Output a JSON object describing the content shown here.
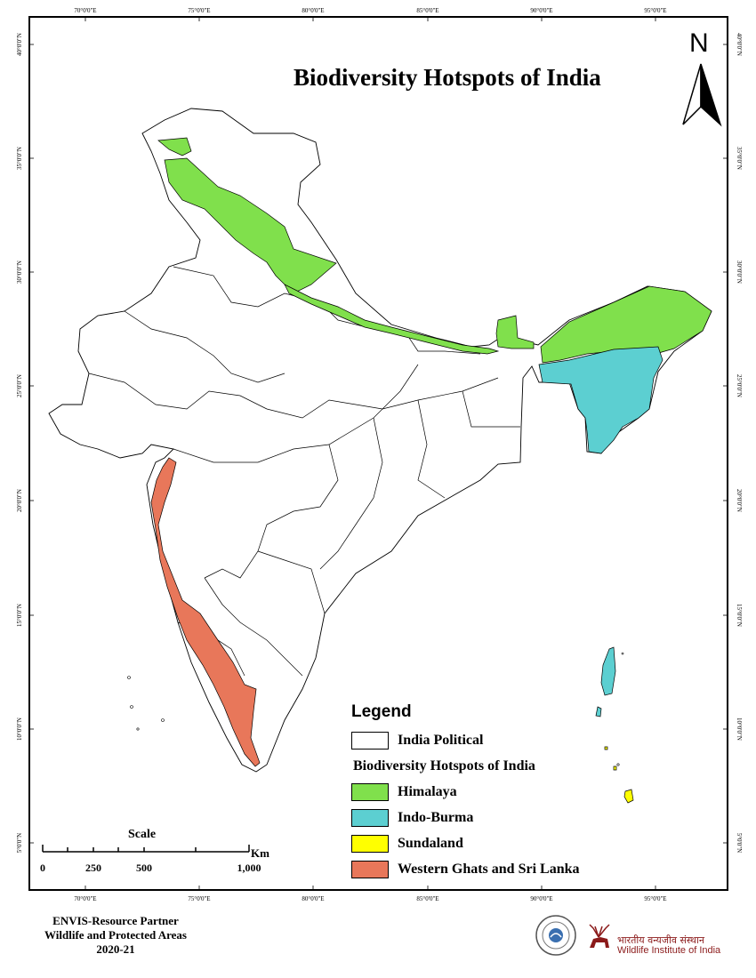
{
  "title": "Biodiversity Hotspots of India",
  "north_arrow_label": "N",
  "longitude_labels": [
    "70°0'0\"E",
    "75°0'0\"E",
    "80°0'0\"E",
    "85°0'0\"E",
    "90°0'0\"E",
    "95°0'0\"E"
  ],
  "latitude_labels": [
    "40°0'0\"N",
    "35°0'0\"N",
    "30°0'0\"N",
    "25°0'0\"N",
    "20°0'0\"N",
    "15°0'0\"N",
    "10°0'0\"N",
    "5°0'0\"N"
  ],
  "colors": {
    "himalaya": "#80e04c",
    "indo_burma": "#5ccfd1",
    "sundaland": "#ffff00",
    "western_ghats": "#e8775a",
    "india_political": "#ffffff",
    "boundary": "#000000",
    "institute": "#8b1a1a"
  },
  "legend": {
    "title": "Legend",
    "political_label": "India Political",
    "hotspots_heading": "Biodiversity Hotspots of India",
    "items": [
      {
        "label": "Himalaya",
        "color": "#80e04c"
      },
      {
        "label": "Indo-Burma",
        "color": "#5ccfd1"
      },
      {
        "label": "Sundaland",
        "color": "#ffff00"
      },
      {
        "label": "Western Ghats and Sri Lanka",
        "color": "#e8775a"
      }
    ]
  },
  "scale_bar": {
    "title": "Scale",
    "unit": "Km",
    "ticks": [
      "0",
      "250",
      "500",
      "1,000"
    ]
  },
  "credit": {
    "line1": "ENVIS-Resource Partner",
    "line2": "Wildlife and Protected Areas",
    "line3": "2020-21"
  },
  "institute": {
    "hindi_name": "भारतीय वन्यजीव संस्थान",
    "english_name": "Wildlife Institute of India"
  },
  "logo_icons": [
    "envis-seal-icon",
    "wii-deer-icon"
  ]
}
